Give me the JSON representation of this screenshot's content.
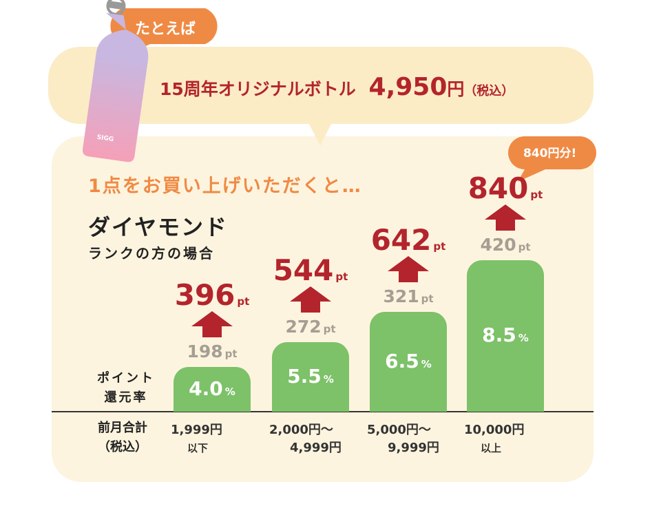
{
  "header": {
    "callout": "たとえば",
    "product": "15周年オリジナルボトル",
    "price": "4,950",
    "price_unit": "円",
    "tax": "（税込）"
  },
  "note": "840円分!",
  "lead": "1点をお買い上げいただくと…",
  "rank": {
    "name": "ダイヤモンド",
    "sub": "ランクの方の場合"
  },
  "row_labels": {
    "rate": [
      "ポイント",
      "還元率"
    ],
    "total": [
      "前月合計",
      "（税込）"
    ]
  },
  "units": {
    "rate": "%",
    "point": "pt"
  },
  "columns": [
    {
      "rate": "4.0",
      "base": "198",
      "total": "396",
      "range": [
        "1,999円",
        "以下"
      ]
    },
    {
      "rate": "5.5",
      "base": "272",
      "total": "544",
      "range": [
        "2,000円～",
        "4,999円"
      ]
    },
    {
      "rate": "6.5",
      "base": "321",
      "total": "642",
      "range": [
        "5,000円～",
        "9,999円"
      ]
    },
    {
      "rate": "8.5",
      "base": "420",
      "total": "840",
      "range": [
        "10,000円",
        "以上"
      ]
    }
  ]
}
